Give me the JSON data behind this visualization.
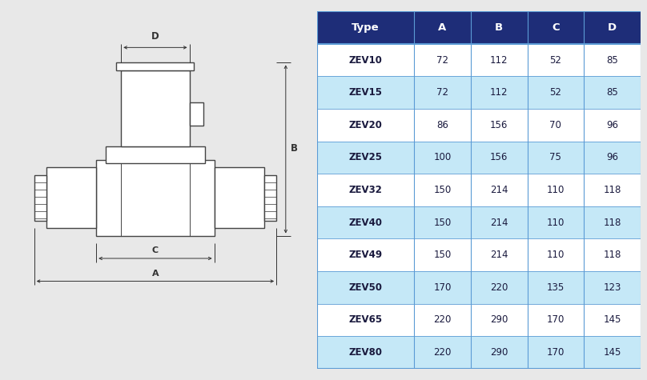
{
  "table_headers": [
    "Type",
    "A",
    "B",
    "C",
    "D"
  ],
  "table_rows": [
    [
      "ZEV10",
      "72",
      "112",
      "52",
      "85"
    ],
    [
      "ZEV15",
      "72",
      "112",
      "52",
      "85"
    ],
    [
      "ZEV20",
      "86",
      "156",
      "70",
      "96"
    ],
    [
      "ZEV25",
      "100",
      "156",
      "75",
      "96"
    ],
    [
      "ZEV32",
      "150",
      "214",
      "110",
      "118"
    ],
    [
      "ZEV40",
      "150",
      "214",
      "110",
      "118"
    ],
    [
      "ZEV49",
      "150",
      "214",
      "110",
      "118"
    ],
    [
      "ZEV50",
      "170",
      "220",
      "135",
      "123"
    ],
    [
      "ZEV65",
      "220",
      "290",
      "170",
      "145"
    ],
    [
      "ZEV80",
      "220",
      "290",
      "170",
      "145"
    ]
  ],
  "header_bg": "#1e2d78",
  "header_text": "#ffffff",
  "row_bg_white": "#ffffff",
  "row_bg_blue": "#c5e8f7",
  "row_text": "#1a1a3e",
  "table_border": "#5b9bd5",
  "bg_color": "#e8e8e8",
  "diagram_line_color": "#444444",
  "diagram_bg": "#f5f5f5"
}
